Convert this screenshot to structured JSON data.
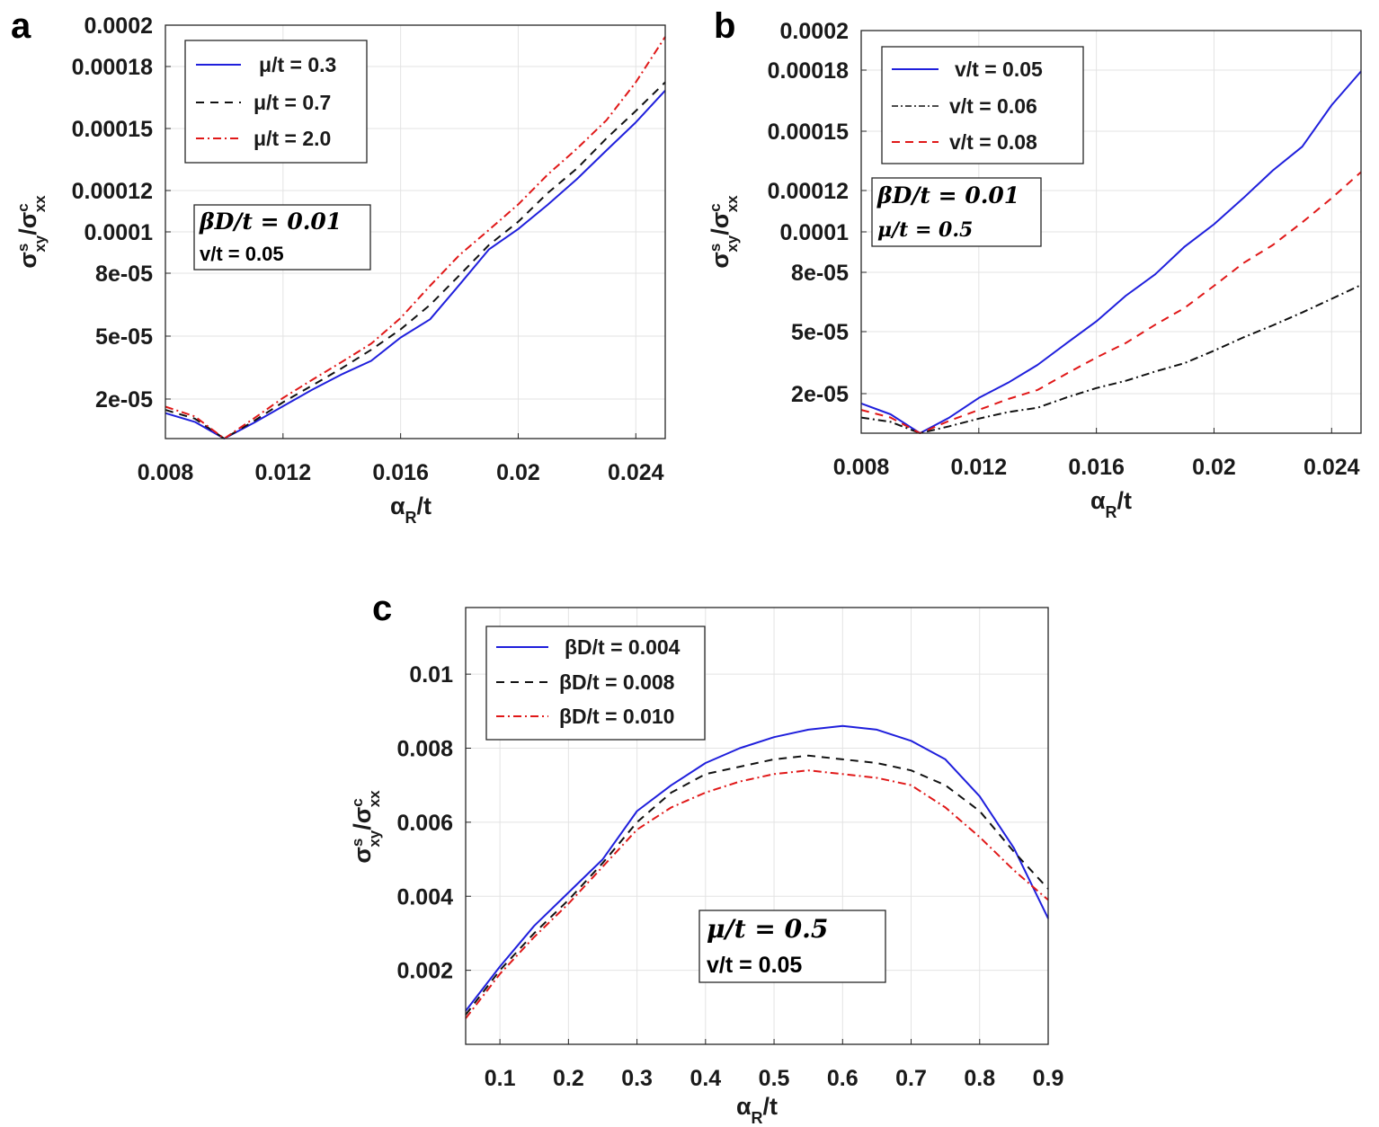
{
  "chart_data": [
    {
      "type": "line",
      "panel": "a",
      "title": "",
      "xlabel": "αR/t",
      "ylabel": "σsxy/σcxx",
      "xlim": [
        0.008,
        0.025
      ],
      "x_ticks": [
        0.008,
        0.012,
        0.016,
        0.02,
        0.024
      ],
      "x_tick_labels": [
        "0.008",
        "0.012",
        "0.016",
        "0.02",
        "0.024"
      ],
      "y_scale": "nonlinear (tick labels as printed)",
      "y_ticks": [
        2e-05,
        5e-05,
        8e-05,
        0.0001,
        0.00012,
        0.00015,
        0.00018,
        0.0002
      ],
      "y_tick_labels": [
        "2e-05",
        "5e-05",
        "8e-05",
        "0.0001",
        "0.00012",
        "0.00015",
        "0.00018",
        "0.0002"
      ],
      "grid": true,
      "legend_position": "top-left",
      "x": [
        0.008,
        0.009,
        0.01,
        0.011,
        0.012,
        0.013,
        0.014,
        0.015,
        0.016,
        0.017,
        0.018,
        0.019,
        0.02,
        0.021,
        0.022,
        0.023,
        0.024,
        0.025
      ],
      "series": [
        {
          "name": "μ/t = 0.3",
          "color": "#1f1fdc",
          "dash": "solid",
          "values": [
            1.35e-05,
            9.5e-06,
            1.8e-06,
            9e-06,
            1.67e-05,
            2.45e-05,
            3.18e-05,
            3.82e-05,
            4.93e-05,
            5.8e-05,
            7.45e-05,
            9.15e-05,
            0.0001014,
            0.0001131,
            0.0001256,
            0.0001394,
            0.000153,
            0.0001684
          ]
        },
        {
          "name": "μ/t = 0.7",
          "color": "#111111",
          "dash": "dashed",
          "values": [
            1.5e-05,
            1.1e-05,
            1.8e-06,
            9.8e-06,
            1.85e-05,
            2.65e-05,
            3.47e-05,
            4.35e-05,
            5.32e-05,
            6.49e-05,
            7.9e-05,
            9.36e-05,
            0.0001049,
            0.0001188,
            0.0001307,
            0.0001452,
            0.0001585,
            0.0001724
          ]
        },
        {
          "name": "μ/t = 2.0",
          "color": "#e01818",
          "dash": "dashdot",
          "values": [
            1.65e-05,
            1.2e-05,
            1.8e-06,
            1.1e-05,
            2.05e-05,
            2.92e-05,
            3.77e-05,
            4.64e-05,
            5.86e-05,
            7.4e-05,
            8.88e-05,
            0.0001009,
            0.0001133,
            0.0001277,
            0.0001403,
            0.000154,
            0.0001724,
            0.0001944
          ]
        }
      ],
      "annotations": [
        {
          "math": "βD/t = 0.01",
          "text": "v/t = 0.05"
        }
      ]
    },
    {
      "type": "line",
      "panel": "b",
      "title": "",
      "xlabel": "αR/t",
      "ylabel": "σsxy/σcxx",
      "xlim": [
        0.008,
        0.025
      ],
      "x_ticks": [
        0.008,
        0.012,
        0.016,
        0.02,
        0.024
      ],
      "x_tick_labels": [
        "0.008",
        "0.012",
        "0.016",
        "0.02",
        "0.024"
      ],
      "y_scale": "nonlinear (tick labels as printed)",
      "y_ticks": [
        2e-05,
        5e-05,
        8e-05,
        0.0001,
        0.00012,
        0.00015,
        0.00018,
        0.0002
      ],
      "y_tick_labels": [
        "2e-05",
        "5e-05",
        "8e-05",
        "0.0001",
        "0.00012",
        "0.00015",
        "0.00018",
        "0.0002"
      ],
      "grid": true,
      "legend_position": "top-left",
      "x": [
        0.008,
        0.009,
        0.01,
        0.011,
        0.012,
        0.013,
        0.014,
        0.015,
        0.016,
        0.017,
        0.018,
        0.019,
        0.02,
        0.021,
        0.022,
        0.023,
        0.024,
        0.025
      ],
      "series": [
        {
          "name": "v/t = 0.05",
          "color": "#1f1fdc",
          "dash": "solid",
          "values": [
            1.55e-05,
            1.05e-05,
            1.8e-06,
            9e-06,
            1.8e-05,
            2.53e-05,
            3.39e-05,
            4.45e-05,
            5.52e-05,
            6.82e-05,
            7.9e-05,
            9.27e-05,
            0.0001037,
            0.0001164,
            0.0001302,
            0.0001422,
            0.0001628,
            0.0001794
          ]
        },
        {
          "name": "v/t = 0.06",
          "color": "#111111",
          "dash": "dashdot",
          "values": [
            9e-06,
            7e-06,
            1.8e-06,
            5e-06,
            8.5e-06,
            1.15e-05,
            1.35e-05,
            1.83e-05,
            2.27e-05,
            2.62e-05,
            3.07e-05,
            3.48e-05,
            4.08e-05,
            4.72e-05,
            5.32e-05,
            5.97e-05,
            6.66e-05,
            7.36e-05
          ]
        },
        {
          "name": "v/t = 0.08",
          "color": "#e01818",
          "dash": "dashed",
          "values": [
            1.25e-05,
            9e-06,
            1.8e-06,
            7.5e-06,
            1.25e-05,
            1.75e-05,
            2.18e-05,
            2.98e-05,
            3.75e-05,
            4.45e-05,
            5.35e-05,
            6.2e-05,
            7.32e-05,
            8.46e-05,
            9.35e-05,
            0.0001046,
            0.0001163,
            0.0001293
          ]
        }
      ],
      "annotations": [
        {
          "math": "βD/t = 0.01",
          "math2": "μ/t = 0.5"
        }
      ]
    },
    {
      "type": "line",
      "panel": "c",
      "title": "",
      "xlabel": "αR/t",
      "ylabel": "σsxy/σcxx",
      "xlim": [
        0.05,
        0.9
      ],
      "ylim": [
        0,
        0.0118
      ],
      "x_ticks": [
        0.1,
        0.2,
        0.3,
        0.4,
        0.5,
        0.6,
        0.7,
        0.8,
        0.9
      ],
      "x_tick_labels": [
        "0.1",
        "0.2",
        "0.3",
        "0.4",
        "0.5",
        "0.6",
        "0.7",
        "0.8",
        "0.9"
      ],
      "y_ticks": [
        0.002,
        0.004,
        0.006,
        0.008,
        0.01
      ],
      "y_tick_labels": [
        "0.002",
        "0.004",
        "0.006",
        "0.008",
        "0.01"
      ],
      "grid": true,
      "legend_position": "top-left",
      "x": [
        0.05,
        0.1,
        0.15,
        0.2,
        0.25,
        0.3,
        0.35,
        0.4,
        0.45,
        0.5,
        0.55,
        0.6,
        0.65,
        0.7,
        0.75,
        0.8,
        0.85,
        0.9
      ],
      "series": [
        {
          "name": "βD/t = 0.004",
          "color": "#1f1fdc",
          "dash": "solid",
          "values": [
            0.0009,
            0.0021,
            0.0032,
            0.0041,
            0.005,
            0.0063,
            0.007,
            0.0076,
            0.008,
            0.0083,
            0.0085,
            0.0086,
            0.0085,
            0.0082,
            0.0077,
            0.0067,
            0.0053,
            0.0034
          ]
        },
        {
          "name": "βD/t = 0.008",
          "color": "#111111",
          "dash": "dashed",
          "values": [
            0.0008,
            0.002,
            0.003,
            0.0039,
            0.0049,
            0.006,
            0.0068,
            0.0073,
            0.0075,
            0.0077,
            0.0078,
            0.0077,
            0.0076,
            0.0074,
            0.007,
            0.0063,
            0.0052,
            0.0042
          ]
        },
        {
          "name": "βD/t = 0.010",
          "color": "#e01818",
          "dash": "dashdot",
          "values": [
            0.0007,
            0.0019,
            0.0029,
            0.0038,
            0.0048,
            0.0058,
            0.0064,
            0.0068,
            0.0071,
            0.0073,
            0.0074,
            0.0073,
            0.0072,
            0.007,
            0.0064,
            0.0056,
            0.0047,
            0.0039
          ]
        }
      ],
      "annotations": [
        {
          "math": "μ/t = 0.5",
          "text": "v/t = 0.05"
        }
      ]
    }
  ]
}
